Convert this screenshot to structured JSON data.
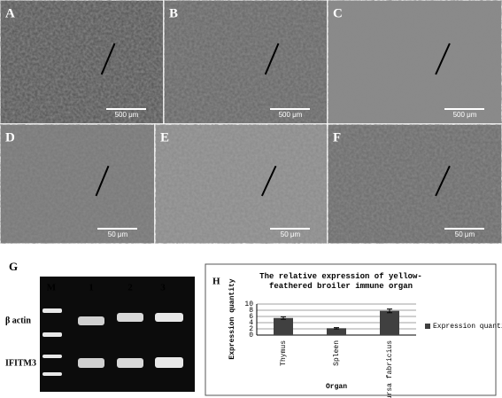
{
  "panels": [
    {
      "label": "A",
      "scale": "500 μm"
    },
    {
      "label": "B",
      "scale": "500 μm"
    },
    {
      "label": "C",
      "scale": "500 μm"
    },
    {
      "label": "D",
      "scale": "50 μm"
    },
    {
      "label": "E",
      "scale": "50 μm"
    },
    {
      "label": "F",
      "scale": "50 μm"
    }
  ],
  "gel": {
    "label": "G",
    "lanes": [
      "M",
      "1",
      "2",
      "3"
    ],
    "rows": [
      "β actin",
      "IFITM3"
    ]
  },
  "chart_data": {
    "type": "bar",
    "panel": "H",
    "title": "The relative expression of yellow-feathered broiler immune organ",
    "ylabel": "Expression quantity",
    "xlabel": "Organ",
    "categories": [
      "Thymus",
      "Spleen",
      "Bursa fabricius"
    ],
    "series": [
      {
        "name": "Expression quantity",
        "color": "#404040",
        "values": [
          5.5,
          2.2,
          7.8
        ],
        "errors": [
          0.4,
          0.2,
          0.6
        ]
      }
    ],
    "ylim": [
      0,
      10
    ],
    "yticks": [
      0,
      2,
      4,
      6,
      8,
      10
    ],
    "grid": true,
    "legend": "right"
  }
}
